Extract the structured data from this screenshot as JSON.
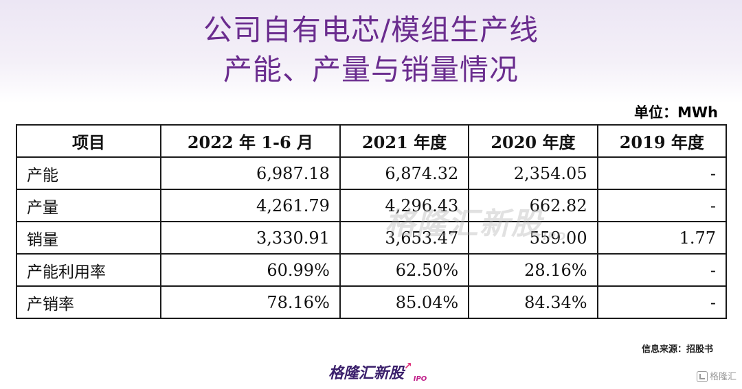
{
  "title": {
    "line1": "公司自有电芯/模组生产线",
    "line2": "产能、产量与销量情况"
  },
  "unit_label": "单位：MWh",
  "table": {
    "headers": [
      "项目",
      "2022 年 1-6 月",
      "2021 年度",
      "2020 年度",
      "2019 年度"
    ],
    "rows": [
      {
        "label": "产能",
        "values": [
          "6,987.18",
          "6,874.32",
          "2,354.05",
          "-"
        ]
      },
      {
        "label": "产量",
        "values": [
          "4,261.79",
          "4,296.43",
          "662.82",
          "-"
        ]
      },
      {
        "label": "销量",
        "values": [
          "3,330.91",
          "3,653.47",
          "559.00",
          "1.77"
        ]
      },
      {
        "label": "产能利用率",
        "values": [
          "60.99%",
          "62.50%",
          "28.16%",
          "-"
        ]
      },
      {
        "label": "产销率",
        "values": [
          "78.16%",
          "85.04%",
          "84.34%",
          "-"
        ]
      }
    ]
  },
  "source": "信息来源：招股书",
  "watermark": {
    "text": "格隆汇新股",
    "suffix": "IPO"
  },
  "logo": {
    "text": "格隆汇新股",
    "suffix": "IPO"
  },
  "corner_mark": "格隆汇"
}
